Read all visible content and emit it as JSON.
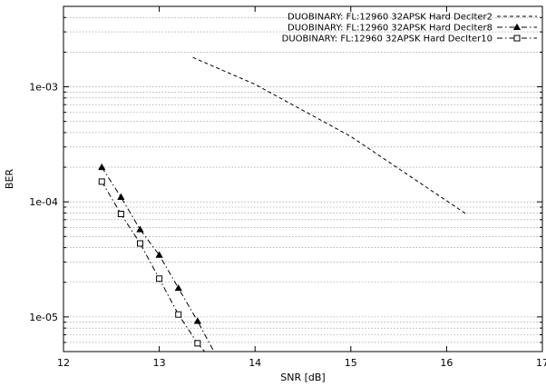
{
  "chart_data": {
    "type": "line",
    "title": "",
    "xlabel": "SNR [dB]",
    "ylabel": "BER",
    "xlim": [
      12,
      17
    ],
    "ylim": [
      5e-06,
      0.005
    ],
    "yscale": "log",
    "x_ticks": [
      12,
      13,
      14,
      15,
      16,
      17
    ],
    "x_tick_labels": [
      "12",
      "13",
      "14",
      "15",
      "16",
      "17"
    ],
    "y_ticks": [
      1e-05,
      0.0001,
      0.001
    ],
    "y_tick_labels": [
      "1e-05",
      "1e-04",
      "1e-03"
    ],
    "grid": "y-minor",
    "legend_position": "top-right",
    "series": [
      {
        "name": "DUOBINARY: FL:12960 32APSK Hard DecIter2",
        "style": "dashed",
        "marker": "none",
        "color": "#000000",
        "x": [
          13.35,
          14.0,
          15.0,
          16.2
        ],
        "y": [
          0.0018,
          0.00105,
          0.00037,
          7.9e-05
        ]
      },
      {
        "name": "DUOBINARY: FL:12960 32APSK Hard DecIter8",
        "style": "dashdot",
        "marker": "triangle",
        "color": "#000000",
        "x": [
          12.4,
          12.6,
          12.8,
          13.0,
          13.2,
          13.4,
          13.6
        ],
        "y": [
          0.0002,
          0.00011,
          5.75e-05,
          3.45e-05,
          1.78e-05,
          9.2e-06,
          4.5e-06
        ]
      },
      {
        "name": "DUOBINARY: FL:12960 32APSK Hard DecIter10",
        "style": "dashdot",
        "marker": "square",
        "color": "#000000",
        "x": [
          12.4,
          12.6,
          12.8,
          13.0,
          13.2,
          13.4,
          13.55
        ],
        "y": [
          0.00015,
          7.85e-05,
          4.35e-05,
          2.15e-05,
          1.05e-05,
          5.9e-06,
          4.2e-06
        ]
      }
    ]
  }
}
